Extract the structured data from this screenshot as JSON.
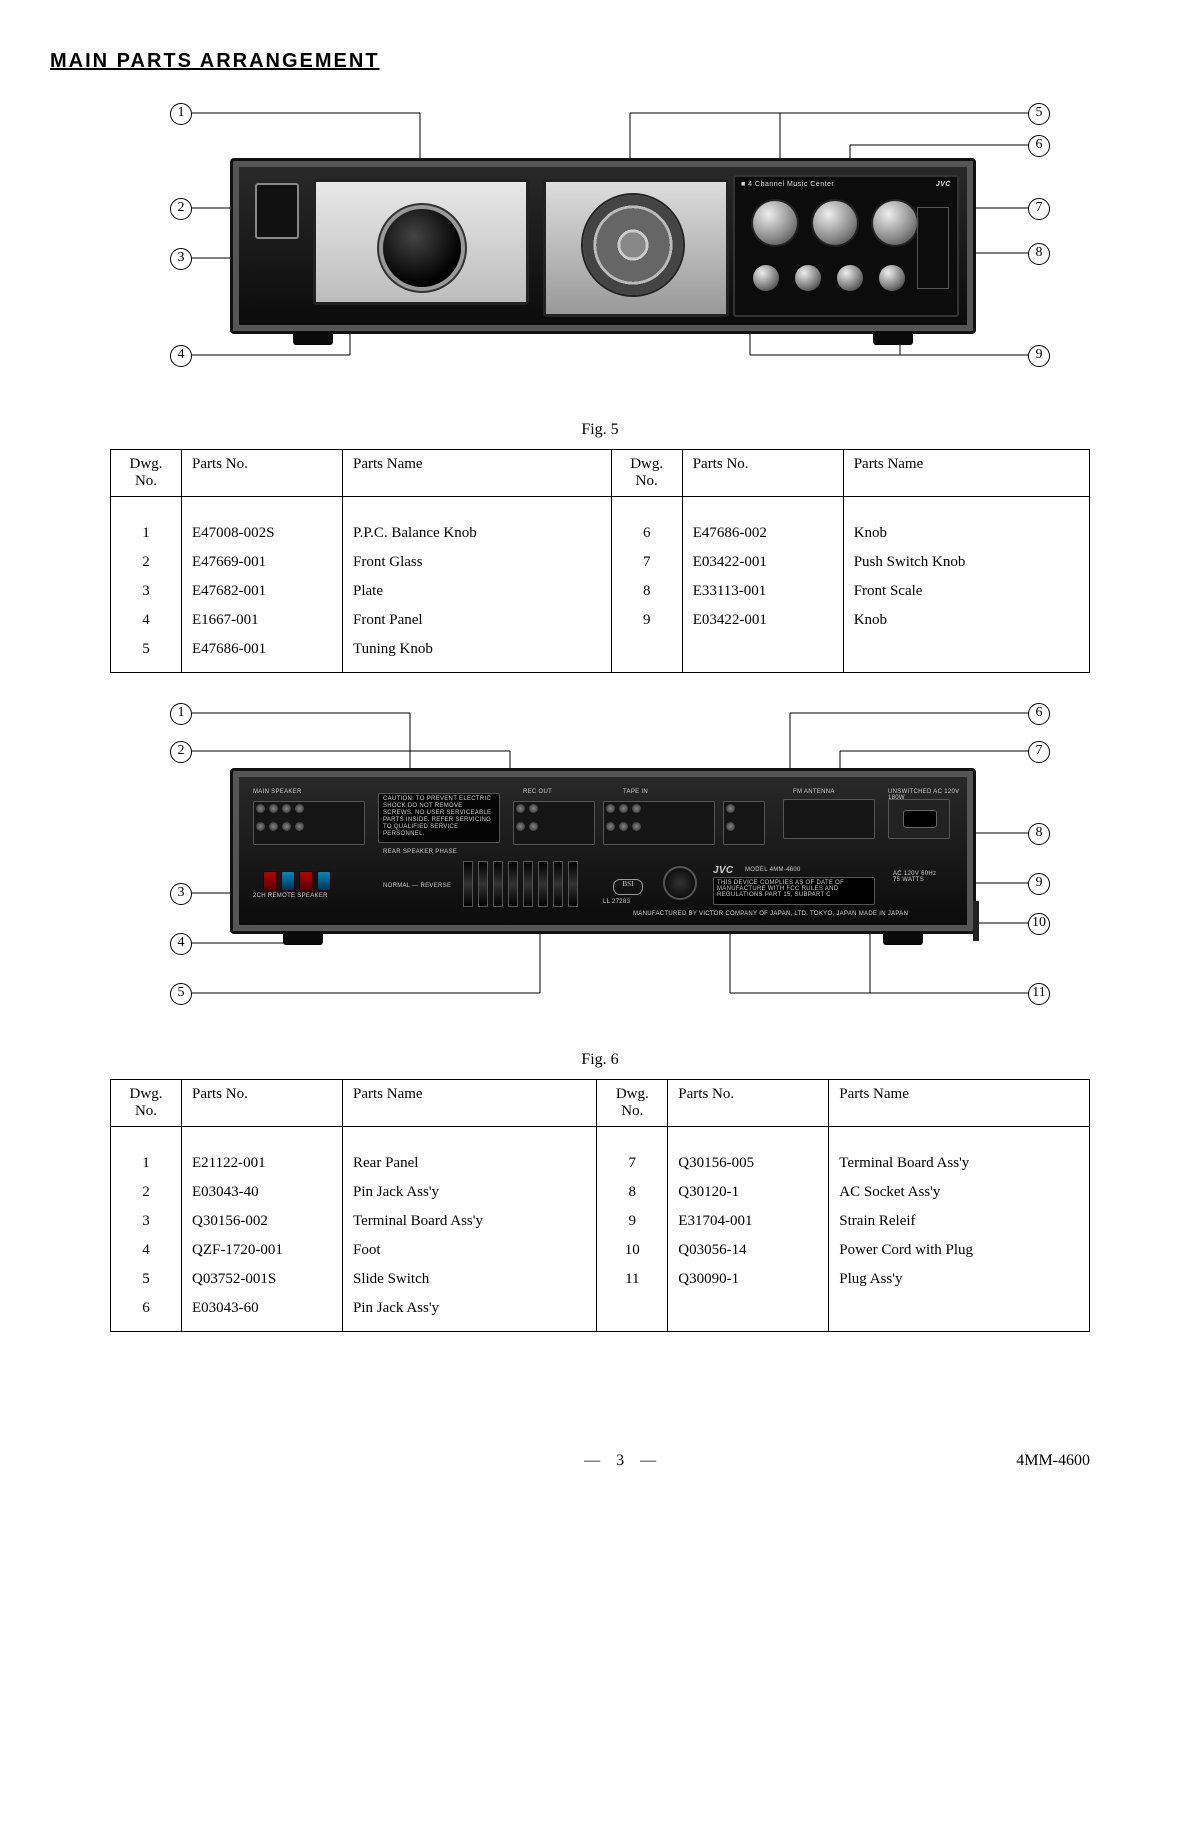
{
  "section_title": "MAIN  PARTS  ARRANGEMENT",
  "fig5": {
    "caption": "Fig. 5",
    "brand": "JVC",
    "callouts": {
      "1": "1",
      "2": "2",
      "3": "3",
      "4": "4",
      "5": "5",
      "6": "6",
      "7": "7",
      "8": "8",
      "9": "9"
    },
    "table": {
      "headers": {
        "dwg": "Dwg.\nNo.",
        "pno": "Parts No.",
        "pname": "Parts Name"
      },
      "left": [
        {
          "n": "1",
          "pno": "E47008-002S",
          "name": "P.P.C. Balance Knob"
        },
        {
          "n": "2",
          "pno": "E47669-001",
          "name": "Front Glass"
        },
        {
          "n": "3",
          "pno": "E47682-001",
          "name": "Plate"
        },
        {
          "n": "4",
          "pno": "E1667-001",
          "name": "Front Panel"
        },
        {
          "n": "5",
          "pno": "E47686-001",
          "name": "Tuning Knob"
        }
      ],
      "right": [
        {
          "n": "6",
          "pno": "E47686-002",
          "name": "Knob"
        },
        {
          "n": "7",
          "pno": "E03422-001",
          "name": "Push Switch Knob"
        },
        {
          "n": "8",
          "pno": "E33113-001",
          "name": "Front Scale"
        },
        {
          "n": "9",
          "pno": "E03422-001",
          "name": "Knob"
        }
      ]
    }
  },
  "fig6": {
    "caption": "Fig. 6",
    "callouts": {
      "1": "1",
      "2": "2",
      "3": "3",
      "4": "4",
      "5": "5",
      "6": "6",
      "7": "7",
      "8": "8",
      "9": "9",
      "10": "10",
      "11": "11"
    },
    "table": {
      "headers": {
        "dwg": "Dwg.\nNo.",
        "pno": "Parts No.",
        "pname": "Parts Name"
      },
      "left": [
        {
          "n": "1",
          "pno": "E21122-001",
          "name": "Rear Panel"
        },
        {
          "n": "2",
          "pno": "E03043-40",
          "name": "Pin Jack Ass'y"
        },
        {
          "n": "3",
          "pno": "Q30156-002",
          "name": "Terminal Board Ass'y"
        },
        {
          "n": "4",
          "pno": "QZF-1720-001",
          "name": "Foot"
        },
        {
          "n": "5",
          "pno": "Q03752-001S",
          "name": "Slide Switch"
        },
        {
          "n": "6",
          "pno": "E03043-60",
          "name": "Pin Jack Ass'y"
        }
      ],
      "right": [
        {
          "n": "7",
          "pno": "Q30156-005",
          "name": "Terminal Board Ass'y"
        },
        {
          "n": "8",
          "pno": "Q30120-1",
          "name": "AC Socket Ass'y"
        },
        {
          "n": "9",
          "pno": "E31704-001",
          "name": "Strain Releif"
        },
        {
          "n": "10",
          "pno": "Q03056-14",
          "name": "Power Cord with Plug"
        },
        {
          "n": "11",
          "pno": "Q30090-1",
          "name": "Plug Ass'y"
        }
      ]
    }
  },
  "footer": {
    "page": "—  3  —",
    "doc": "4MM-4600"
  }
}
